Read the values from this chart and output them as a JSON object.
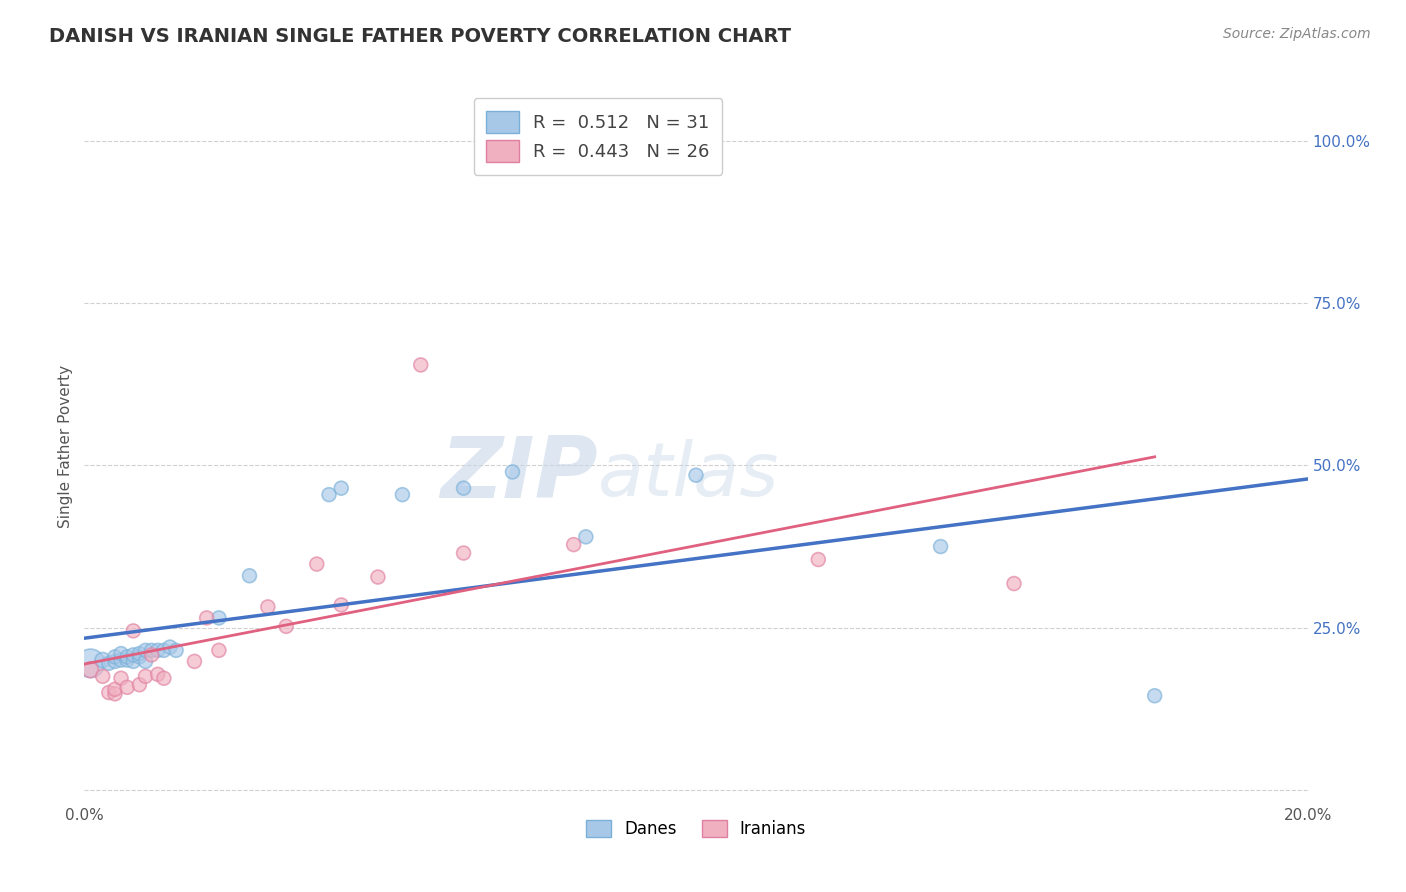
{
  "title": "DANISH VS IRANIAN SINGLE FATHER POVERTY CORRELATION CHART",
  "source": "Source: ZipAtlas.com",
  "ylabel": "Single Father Poverty",
  "xlim": [
    0.0,
    0.2
  ],
  "ylim": [
    -0.02,
    1.08
  ],
  "yticks": [
    0.0,
    0.25,
    0.5,
    0.75,
    1.0
  ],
  "ytick_labels": [
    "",
    "25.0%",
    "50.0%",
    "75.0%",
    "100.0%"
  ],
  "xticks": [
    0.0,
    0.05,
    0.1,
    0.15,
    0.2
  ],
  "xtick_labels": [
    "0.0%",
    "",
    "",
    "",
    "20.0%"
  ],
  "danish_R": 0.512,
  "danish_N": 31,
  "iranian_R": 0.443,
  "iranian_N": 26,
  "danish_color": "#a8c8e8",
  "danish_edge_color": "#7ab0d8",
  "iranian_color": "#f0b0c0",
  "iranian_edge_color": "#e080a0",
  "danish_line_color": "#4472c4",
  "iranian_line_color": "#e06080",
  "watermark_zip": "ZIP",
  "watermark_atlas": "atlas",
  "background_color": "#ffffff",
  "danish_x": [
    0.001,
    0.003,
    0.004,
    0.005,
    0.005,
    0.006,
    0.006,
    0.007,
    0.007,
    0.008,
    0.008,
    0.009,
    0.009,
    0.01,
    0.01,
    0.011,
    0.012,
    0.013,
    0.014,
    0.015,
    0.022,
    0.027,
    0.04,
    0.042,
    0.052,
    0.062,
    0.07,
    0.082,
    0.1,
    0.14,
    0.175
  ],
  "danish_y": [
    0.195,
    0.2,
    0.195,
    0.198,
    0.205,
    0.2,
    0.21,
    0.2,
    0.205,
    0.198,
    0.208,
    0.205,
    0.21,
    0.198,
    0.215,
    0.215,
    0.215,
    0.215,
    0.22,
    0.215,
    0.265,
    0.33,
    0.455,
    0.465,
    0.455,
    0.465,
    0.49,
    0.39,
    0.485,
    0.375,
    0.145
  ],
  "danish_sizes": [
    420,
    120,
    100,
    100,
    100,
    100,
    100,
    100,
    100,
    100,
    100,
    100,
    100,
    100,
    100,
    100,
    100,
    100,
    100,
    100,
    100,
    100,
    100,
    100,
    100,
    100,
    100,
    100,
    100,
    100,
    100
  ],
  "iranian_x": [
    0.001,
    0.003,
    0.004,
    0.005,
    0.005,
    0.006,
    0.007,
    0.008,
    0.009,
    0.01,
    0.011,
    0.012,
    0.013,
    0.018,
    0.02,
    0.022,
    0.03,
    0.033,
    0.038,
    0.042,
    0.048,
    0.055,
    0.062,
    0.08,
    0.12,
    0.152
  ],
  "iranian_y": [
    0.185,
    0.175,
    0.15,
    0.148,
    0.155,
    0.172,
    0.158,
    0.245,
    0.162,
    0.175,
    0.208,
    0.178,
    0.172,
    0.198,
    0.265,
    0.215,
    0.282,
    0.252,
    0.348,
    0.285,
    0.328,
    0.655,
    0.365,
    0.378,
    0.355,
    0.318
  ],
  "iranian_sizes": [
    130,
    100,
    100,
    100,
    100,
    100,
    100,
    100,
    100,
    100,
    100,
    100,
    100,
    100,
    100,
    100,
    100,
    100,
    100,
    100,
    100,
    100,
    100,
    100,
    100,
    100
  ],
  "grid_color": "#d0d0d0"
}
